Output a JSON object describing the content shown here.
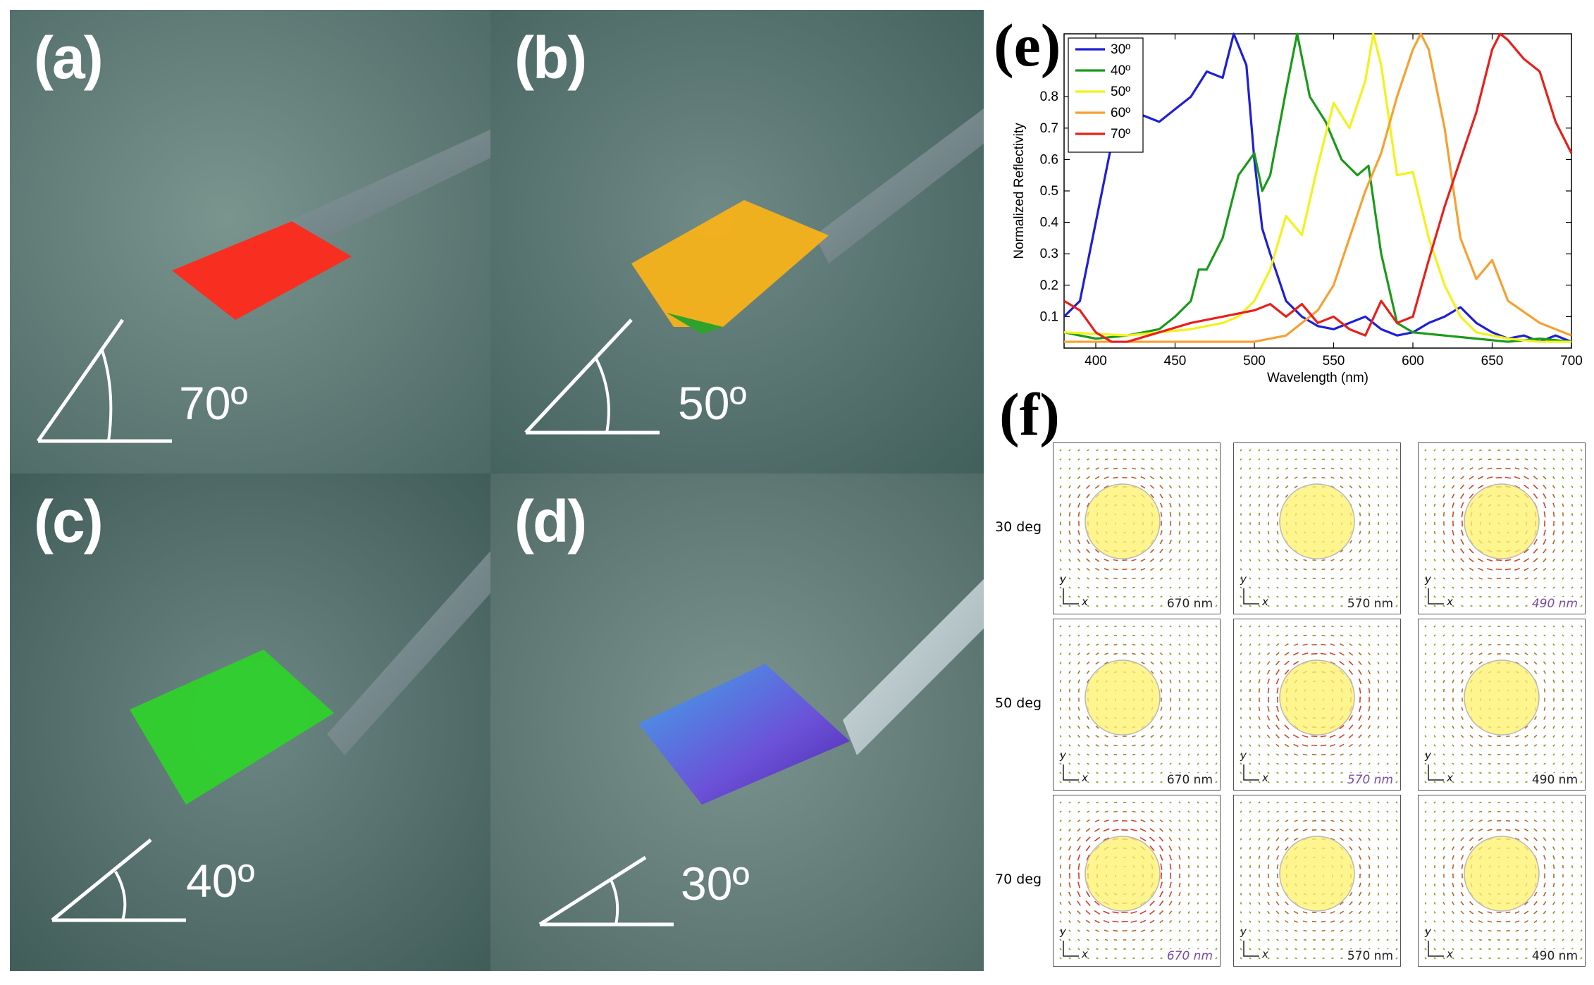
{
  "photos": [
    {
      "label": "(a)",
      "angle": "70º",
      "color": "#ff2a1a"
    },
    {
      "label": "(b)",
      "angle": "50º",
      "color": "#f7b21a"
    },
    {
      "label": "(c)",
      "angle": "40º",
      "color": "#2fd12c"
    },
    {
      "label": "(d)",
      "angle": "30º",
      "color": "#5a45d6"
    }
  ],
  "panel_e_label": "(e)",
  "panel_f_label": "(f)",
  "chart_data": {
    "type": "line",
    "title": "",
    "xlabel": "Wavelength (nm)",
    "ylabel": "Normalized Reflectivity",
    "xlim": [
      380,
      700
    ],
    "ylim": [
      0,
      1
    ],
    "xticks": [
      400,
      450,
      500,
      550,
      600,
      650,
      700
    ],
    "yticks": [
      0.1,
      0.2,
      0.3,
      0.4,
      0.5,
      0.6,
      0.7,
      0.8
    ],
    "legend_position": "top-left",
    "series": [
      {
        "name": "30º",
        "color": "#1f1fd6",
        "x": [
          380,
          390,
          400,
          410,
          420,
          430,
          440,
          450,
          460,
          470,
          480,
          487,
          495,
          500,
          505,
          510,
          520,
          530,
          540,
          550,
          560,
          570,
          580,
          590,
          600,
          610,
          620,
          630,
          640,
          650,
          660,
          670,
          680,
          690,
          700
        ],
        "y": [
          0.1,
          0.15,
          0.4,
          0.65,
          0.7,
          0.74,
          0.72,
          0.76,
          0.8,
          0.88,
          0.86,
          1.0,
          0.9,
          0.6,
          0.38,
          0.3,
          0.15,
          0.1,
          0.07,
          0.06,
          0.08,
          0.1,
          0.06,
          0.04,
          0.05,
          0.08,
          0.1,
          0.13,
          0.08,
          0.05,
          0.03,
          0.04,
          0.02,
          0.04,
          0.02
        ]
      },
      {
        "name": "40º",
        "color": "#1a9a1a",
        "x": [
          380,
          400,
          420,
          440,
          450,
          460,
          465,
          470,
          480,
          490,
          500,
          505,
          510,
          520,
          527,
          535,
          545,
          555,
          565,
          572,
          580,
          590,
          600,
          620,
          640,
          660,
          680,
          700
        ],
        "y": [
          0.05,
          0.03,
          0.04,
          0.06,
          0.1,
          0.15,
          0.25,
          0.25,
          0.35,
          0.55,
          0.62,
          0.5,
          0.55,
          0.82,
          1.0,
          0.8,
          0.72,
          0.6,
          0.55,
          0.58,
          0.3,
          0.08,
          0.05,
          0.04,
          0.03,
          0.02,
          0.03,
          0.02
        ]
      },
      {
        "name": "50º",
        "color": "#f2f21a",
        "x": [
          380,
          420,
          460,
          480,
          490,
          500,
          510,
          520,
          530,
          540,
          550,
          560,
          570,
          575,
          580,
          590,
          600,
          610,
          620,
          630,
          640,
          660,
          680,
          700
        ],
        "y": [
          0.05,
          0.04,
          0.06,
          0.08,
          0.1,
          0.15,
          0.25,
          0.42,
          0.36,
          0.58,
          0.78,
          0.7,
          0.85,
          1.0,
          0.9,
          0.55,
          0.56,
          0.35,
          0.2,
          0.1,
          0.05,
          0.03,
          0.02,
          0.02
        ]
      },
      {
        "name": "60º",
        "color": "#f7a030",
        "x": [
          380,
          440,
          500,
          520,
          530,
          540,
          550,
          560,
          570,
          580,
          590,
          600,
          605,
          610,
          620,
          630,
          640,
          650,
          660,
          680,
          700
        ],
        "y": [
          0.02,
          0.02,
          0.02,
          0.04,
          0.08,
          0.12,
          0.2,
          0.35,
          0.5,
          0.62,
          0.8,
          0.95,
          1.0,
          0.95,
          0.7,
          0.35,
          0.22,
          0.28,
          0.15,
          0.08,
          0.04
        ]
      },
      {
        "name": "70º",
        "color": "#e8201a",
        "x": [
          380,
          390,
          400,
          410,
          420,
          440,
          460,
          480,
          500,
          510,
          520,
          530,
          540,
          550,
          560,
          570,
          580,
          590,
          600,
          610,
          620,
          630,
          640,
          650,
          655,
          660,
          670,
          680,
          690,
          700
        ],
        "y": [
          0.15,
          0.12,
          0.05,
          0.02,
          0.02,
          0.05,
          0.08,
          0.1,
          0.12,
          0.14,
          0.1,
          0.14,
          0.08,
          0.1,
          0.06,
          0.04,
          0.15,
          0.08,
          0.1,
          0.28,
          0.45,
          0.6,
          0.75,
          0.95,
          1.0,
          0.98,
          0.92,
          0.88,
          0.72,
          0.62
        ]
      }
    ]
  },
  "panel_f": {
    "rows": [
      "30 deg",
      "50 deg",
      "70 deg"
    ],
    "cells": [
      [
        {
          "wl": "670 nm",
          "hl": false
        },
        {
          "wl": "570 nm",
          "hl": false
        },
        {
          "wl": "490 nm",
          "hl": true
        }
      ],
      [
        {
          "wl": "670 nm",
          "hl": false
        },
        {
          "wl": "570 nm",
          "hl": true
        },
        {
          "wl": "490 nm",
          "hl": false
        }
      ],
      [
        {
          "wl": "670 nm",
          "hl": true
        },
        {
          "wl": "570 nm",
          "hl": false
        },
        {
          "wl": "490 nm",
          "hl": false
        }
      ]
    ],
    "axis_y": "y",
    "axis_x": "x"
  }
}
